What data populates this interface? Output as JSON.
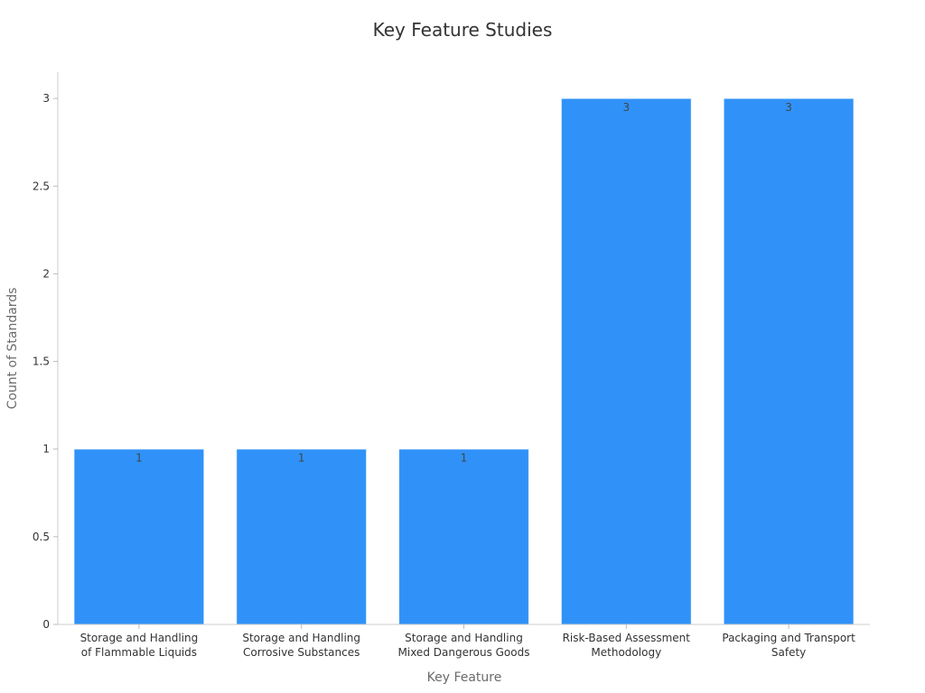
{
  "chart_data": {
    "type": "bar",
    "title": "Key Feature Studies",
    "xlabel": "Key Feature",
    "ylabel": "Count of Standards",
    "categories": [
      "Storage and Handling\nof Flammable Liquids",
      "Storage and Handling\nCorrosive Substances",
      "Storage and Handling\nMixed Dangerous Goods",
      "Risk-Based Assessment\nMethodology",
      "Packaging and Transport\nSafety"
    ],
    "values": [
      1,
      1,
      1,
      3,
      3
    ],
    "yticks": [
      0,
      0.5,
      1,
      1.5,
      2,
      2.5,
      3
    ],
    "ylim": [
      0,
      3.15
    ],
    "grid": false,
    "legend": "none",
    "show_data_labels": true,
    "colors": {
      "bar": "#3092f8",
      "axis": "#cccccc"
    }
  }
}
